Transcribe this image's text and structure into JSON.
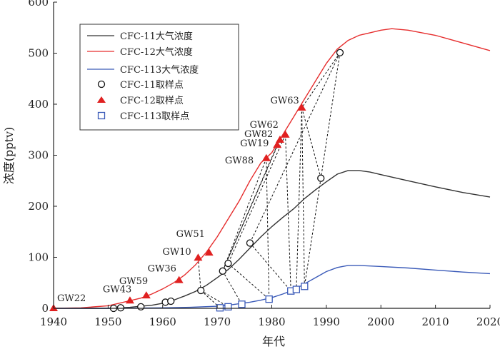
{
  "chart_data": {
    "type": "line",
    "xlabel": "年代",
    "ylabel": "浓度(pptv)",
    "xlim": [
      1940,
      2020
    ],
    "ylim": [
      0,
      600
    ],
    "xticks": [
      1940,
      1950,
      1960,
      1970,
      1980,
      1990,
      2000,
      2010,
      2020
    ],
    "yticks": [
      0,
      100,
      200,
      300,
      400,
      500,
      600
    ],
    "grid": false,
    "legend_position": "top-left",
    "series": [
      {
        "name": "CFC-11大气浓度",
        "kind": "line",
        "color": "#333333",
        "x": [
          1940,
          1945,
          1950,
          1952,
          1954,
          1956,
          1958,
          1960,
          1962,
          1964,
          1966,
          1968,
          1970,
          1972,
          1974,
          1976,
          1978,
          1980,
          1982,
          1984,
          1986,
          1988,
          1990,
          1992,
          1994,
          1996,
          1998,
          2000,
          2005,
          2010,
          2015,
          2020
        ],
        "y": [
          0,
          0,
          0,
          1,
          2,
          4,
          6,
          10,
          16,
          24,
          33,
          45,
          60,
          76,
          96,
          118,
          140,
          160,
          178,
          195,
          215,
          232,
          248,
          263,
          270,
          270,
          267,
          262,
          250,
          238,
          227,
          218
        ]
      },
      {
        "name": "CFC-12大气浓度",
        "kind": "line",
        "color": "#e62e2e",
        "x": [
          1940,
          1945,
          1950,
          1952,
          1954,
          1956,
          1958,
          1960,
          1962,
          1964,
          1966,
          1968,
          1970,
          1972,
          1974,
          1976,
          1978,
          1980,
          1982,
          1984,
          1986,
          1988,
          1990,
          1992,
          1994,
          1996,
          1998,
          2000,
          2002,
          2005,
          2010,
          2015,
          2020
        ],
        "y": [
          0,
          1,
          5,
          10,
          15,
          20,
          28,
          38,
          50,
          65,
          85,
          110,
          140,
          175,
          210,
          250,
          285,
          305,
          340,
          375,
          410,
          445,
          480,
          508,
          525,
          535,
          540,
          545,
          548,
          545,
          535,
          520,
          505
        ]
      },
      {
        "name": "CFC-113大气浓度",
        "kind": "line",
        "color": "#3a5ab8",
        "x": [
          1940,
          1950,
          1960,
          1965,
          1970,
          1972,
          1974,
          1976,
          1978,
          1980,
          1982,
          1984,
          1986,
          1988,
          1990,
          1992,
          1994,
          1996,
          2000,
          2005,
          2010,
          2015,
          2020
        ],
        "y": [
          0,
          0,
          1,
          2,
          4,
          6,
          9,
          12,
          16,
          21,
          28,
          36,
          48,
          60,
          72,
          80,
          84,
          84,
          82,
          79,
          75,
          71,
          68
        ]
      },
      {
        "name": "CFC-11取样点",
        "kind": "marker",
        "marker": "circle",
        "color": "#111111",
        "x": [
          1951,
          1952.3,
          1956,
          1960.5,
          1961.5,
          1967,
          1971,
          1972,
          1976,
          1989,
          1992.5
        ],
        "y": [
          0,
          1,
          3,
          12,
          14,
          35,
          73,
          88,
          128,
          255,
          501
        ]
      },
      {
        "name": "CFC-12取样点",
        "kind": "marker",
        "marker": "triangle",
        "color": "#e02020",
        "x": [
          1940,
          1954,
          1957,
          1963,
          1966.5,
          1968.5,
          1979,
          1981,
          1981.5,
          1982.5,
          1985.5
        ],
        "y": [
          0,
          15,
          25,
          55,
          99,
          109,
          294,
          320,
          330,
          340,
          393
        ]
      },
      {
        "name": "CFC-113取样点",
        "kind": "marker",
        "marker": "square",
        "color": "#3a5ab8",
        "x": [
          1970.5,
          1972,
          1974.5,
          1979.5,
          1983.5,
          1984.5,
          1986
        ],
        "y": [
          1,
          3,
          8,
          18,
          34,
          37,
          43
        ]
      }
    ],
    "sample_labels": [
      {
        "label": "GW22",
        "x": 1940,
        "y": 0
      },
      {
        "label": "GW43",
        "x": 1954,
        "y": 15
      },
      {
        "label": "GW59",
        "x": 1957,
        "y": 25
      },
      {
        "label": "GW36",
        "x": 1963,
        "y": 55
      },
      {
        "label": "GW10",
        "x": 1966.5,
        "y": 99
      },
      {
        "label": "GW51",
        "x": 1968.5,
        "y": 109
      },
      {
        "label": "GW88",
        "x": 1979,
        "y": 294
      },
      {
        "label": "GW19",
        "x": 1981,
        "y": 320
      },
      {
        "label": "GW82",
        "x": 1981.5,
        "y": 330
      },
      {
        "label": "GW62",
        "x": 1982.5,
        "y": 340
      },
      {
        "label": "GW63",
        "x": 1985.5,
        "y": 393
      }
    ],
    "connections": [
      {
        "from": [
          1992.5,
          501
        ],
        "to": [
          1989,
          255
        ]
      },
      {
        "from": [
          1992.5,
          501
        ],
        "to": [
          1985.5,
          393
        ]
      },
      {
        "from": [
          1992.5,
          501
        ],
        "to": [
          1976,
          128
        ]
      },
      {
        "from": [
          1989,
          255
        ],
        "to": [
          1985.5,
          393
        ]
      },
      {
        "from": [
          1989,
          255
        ],
        "to": [
          1986,
          43
        ]
      },
      {
        "from": [
          1985.5,
          393
        ],
        "to": [
          1986,
          43
        ]
      },
      {
        "from": [
          1985.5,
          393
        ],
        "to": [
          1984.5,
          37
        ]
      },
      {
        "from": [
          1982.5,
          340
        ],
        "to": [
          1983.5,
          34
        ]
      },
      {
        "from": [
          1982.5,
          340
        ],
        "to": [
          1972,
          88
        ]
      },
      {
        "from": [
          1981.5,
          330
        ],
        "to": [
          1971,
          73
        ]
      },
      {
        "from": [
          1981,
          320
        ],
        "to": [
          1971,
          73
        ]
      },
      {
        "from": [
          1979,
          294
        ],
        "to": [
          1971,
          73
        ]
      },
      {
        "from": [
          1979,
          294
        ],
        "to": [
          1979.5,
          18
        ]
      },
      {
        "from": [
          1976,
          128
        ],
        "to": [
          1983.5,
          34
        ]
      },
      {
        "from": [
          1972,
          88
        ],
        "to": [
          1979.5,
          18
        ]
      },
      {
        "from": [
          1971,
          73
        ],
        "to": [
          1974.5,
          8
        ]
      },
      {
        "from": [
          1967,
          35
        ],
        "to": [
          1972,
          3
        ]
      },
      {
        "from": [
          1967,
          35
        ],
        "to": [
          1970.5,
          1
        ]
      },
      {
        "from": [
          1966.5,
          99
        ],
        "to": [
          1967,
          35
        ]
      }
    ]
  }
}
